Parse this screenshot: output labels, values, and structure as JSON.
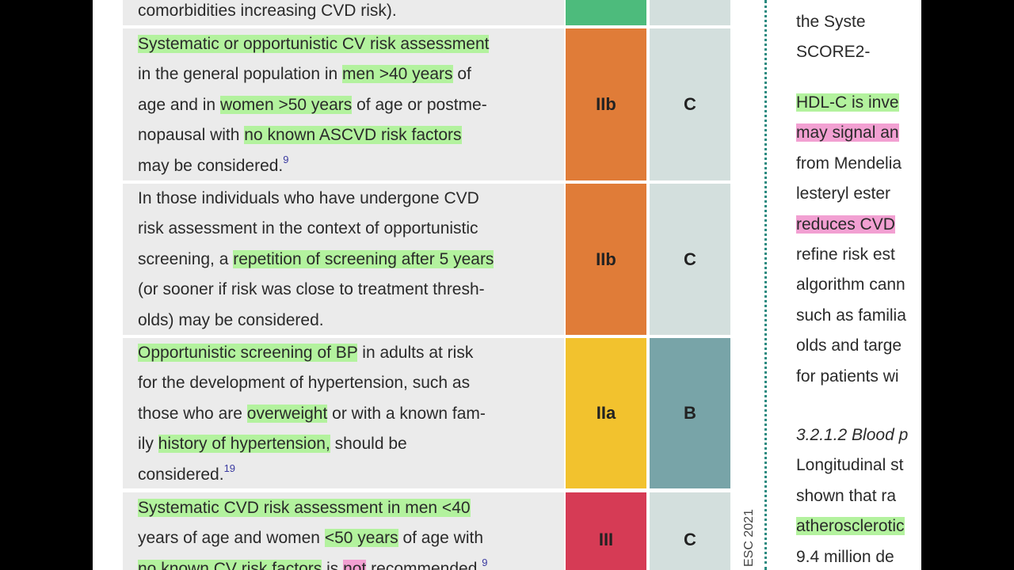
{
  "table": {
    "rows": [
      {
        "lines": [
          [
            {
              "text": "comorbidities increasing CVD risk)."
            }
          ]
        ],
        "class_color": "#4dbb7c",
        "level_color": "#d3dfdd"
      },
      {
        "lines": [
          [
            {
              "text": "Systematic or opportunistic CV risk assessment",
              "hl": "green"
            }
          ],
          [
            {
              "text": "in the general population in "
            },
            {
              "text": "men >40 years",
              "hl": "green"
            },
            {
              "text": " of"
            }
          ],
          [
            {
              "text": "age and in "
            },
            {
              "text": "women >50 years",
              "hl": "green"
            },
            {
              "text": " of age or postme-"
            }
          ],
          [
            {
              "text": "nopausal with "
            },
            {
              "text": "no known ASCVD risk factors",
              "hl": "green"
            }
          ],
          [
            {
              "text": "may be considered."
            },
            {
              "text": "9",
              "sup": true
            }
          ]
        ],
        "class": "IIb",
        "level": "C",
        "class_color": "#e07c38",
        "level_color": "#d3dfdd"
      },
      {
        "lines": [
          [
            {
              "text": "In those individuals who have undergone CVD"
            }
          ],
          [
            {
              "text": "risk assessment in the context of opportunistic"
            }
          ],
          [
            {
              "text": "screening, a "
            },
            {
              "text": "repetition of screening after 5 years",
              "hl": "green"
            }
          ],
          [
            {
              "text": "(or sooner if risk was close to treatment thresh-"
            }
          ],
          [
            {
              "text": "olds) may be considered."
            }
          ]
        ],
        "class": "IIb",
        "level": "C",
        "class_color": "#e07c38",
        "level_color": "#d3dfdd"
      },
      {
        "lines": [
          [
            {
              "text": "Opportunistic screening of BP",
              "hl": "green"
            },
            {
              "text": " in adults at risk"
            }
          ],
          [
            {
              "text": "for the development of hypertension, such as"
            }
          ],
          [
            {
              "text": "those who are "
            },
            {
              "text": "overweight",
              "hl": "green"
            },
            {
              "text": " or with a known fam-"
            }
          ],
          [
            {
              "text": "ily "
            },
            {
              "text": "history of hypertension,",
              "hl": "green"
            },
            {
              "text": " should be"
            }
          ],
          [
            {
              "text": "considered."
            },
            {
              "text": "19",
              "sup": true
            }
          ]
        ],
        "class": "IIa",
        "level": "B",
        "class_color": "#f2c22e",
        "level_color": "#78a4a8"
      },
      {
        "lines": [
          [
            {
              "text": "Systematic CVD risk assessment in men <40",
              "hl": "green"
            }
          ],
          [
            {
              "text": "years of age and women "
            },
            {
              "text": "<50 years",
              "hl": "green"
            },
            {
              "text": " of age with"
            }
          ],
          [
            {
              "text": "no known CV risk factors",
              "hl": "green"
            },
            {
              "text": " is "
            },
            {
              "text": "not",
              "hl": "pink"
            },
            {
              "text": " recommended."
            },
            {
              "text": "9",
              "sup": true
            }
          ]
        ],
        "class": "III",
        "level": "C",
        "class_color": "#d63b55",
        "level_color": "#d3dfdd"
      }
    ]
  },
  "side_label": "ESC 2021",
  "right_column": {
    "blocks": [
      {
        "lines": [
          [
            {
              "text": "the  Syste"
            }
          ],
          [
            {
              "text": "SCORE2-"
            }
          ]
        ]
      },
      {
        "lines": [
          [
            {
              "text": "HDL-C is inve",
              "hl": "green"
            }
          ],
          [
            {
              "text": "may signal an",
              "hl": "pink"
            }
          ],
          [
            {
              "text": "from Mendelia"
            }
          ],
          [
            {
              "text": "lesteryl ester "
            }
          ],
          [
            {
              "text": "reduces CVD",
              "hl": "pink"
            }
          ],
          [
            {
              "text": "refine risk est"
            }
          ],
          [
            {
              "text": "algorithm cann"
            }
          ],
          [
            {
              "text": "such as familia"
            }
          ],
          [
            {
              "text": "olds and targe"
            }
          ],
          [
            {
              "text": "for patients wi"
            }
          ]
        ]
      },
      {
        "lines": [
          [
            {
              "text": "3.2.1.2 Blood p",
              "italic": true
            }
          ],
          [
            {
              "text": "Longitudinal st"
            }
          ],
          [
            {
              "text": "shown that ra"
            }
          ],
          [
            {
              "text": "atherosclerotic",
              "hl": "green"
            }
          ],
          [
            {
              "text": "9.4 million de"
            }
          ]
        ]
      }
    ]
  }
}
